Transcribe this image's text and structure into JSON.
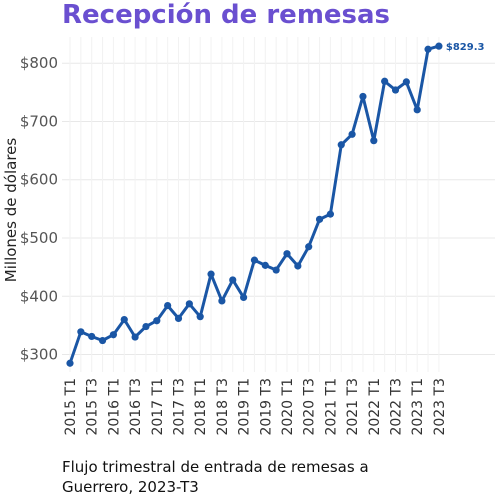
{
  "colors": {
    "title": "#6a4fd0",
    "series": "#1a56a5",
    "grid": "#e8e8e8",
    "annotation": "#1a56a5"
  },
  "chart_data": {
    "type": "line",
    "title": "Recepción de remesas",
    "ylabel": "Millones de dólares",
    "caption_lines": [
      "Flujo trimestral de entrada de remesas a",
      "Guerrero, 2023-T3"
    ],
    "ylim": [
      270,
      845
    ],
    "yticks": [
      300,
      400,
      500,
      600,
      700,
      800
    ],
    "ytick_labels": [
      "$300",
      "$400",
      "$500",
      "$600",
      "$700",
      "$800"
    ],
    "grid": true,
    "x_labeled": [
      {
        "index": 0,
        "label": "2015 T1"
      },
      {
        "index": 2,
        "label": "2015 T3"
      },
      {
        "index": 4,
        "label": "2016 T1"
      },
      {
        "index": 6,
        "label": "2016 T3"
      },
      {
        "index": 8,
        "label": "2017 T1"
      },
      {
        "index": 10,
        "label": "2017 T3"
      },
      {
        "index": 12,
        "label": "2018 T1"
      },
      {
        "index": 14,
        "label": "2018 T3"
      },
      {
        "index": 16,
        "label": "2019 T1"
      },
      {
        "index": 18,
        "label": "2019 T3"
      },
      {
        "index": 20,
        "label": "2020 T1"
      },
      {
        "index": 22,
        "label": "2020 T3"
      },
      {
        "index": 24,
        "label": "2021 T1"
      },
      {
        "index": 26,
        "label": "2021 T3"
      },
      {
        "index": 28,
        "label": "2022 T1"
      },
      {
        "index": 30,
        "label": "2022 T3"
      },
      {
        "index": 32,
        "label": "2023 T1"
      },
      {
        "index": 34,
        "label": "2023 T3"
      }
    ],
    "x": [
      "2015 T1",
      "2015 T2",
      "2015 T3",
      "2015 T4",
      "2016 T1",
      "2016 T2",
      "2016 T3",
      "2016 T4",
      "2017 T1",
      "2017 T2",
      "2017 T3",
      "2017 T4",
      "2018 T1",
      "2018 T2",
      "2018 T3",
      "2018 T4",
      "2019 T1",
      "2019 T2",
      "2019 T3",
      "2019 T4",
      "2020 T1",
      "2020 T2",
      "2020 T3",
      "2020 T4",
      "2021 T1",
      "2021 T2",
      "2021 T3",
      "2021 T4",
      "2022 T1",
      "2022 T2",
      "2022 T3",
      "2022 T4",
      "2023 T1",
      "2023 T2",
      "2023 T3"
    ],
    "series": [
      {
        "values": [
          285,
          339,
          331,
          324,
          334,
          360,
          330,
          348,
          358,
          384,
          362,
          387,
          365,
          438,
          392,
          428,
          398,
          462,
          453,
          445,
          473,
          452,
          485,
          532,
          541,
          660,
          678,
          743,
          667,
          769,
          754,
          768,
          720,
          824,
          829.3
        ]
      }
    ],
    "last_value_label": "$829.3"
  }
}
